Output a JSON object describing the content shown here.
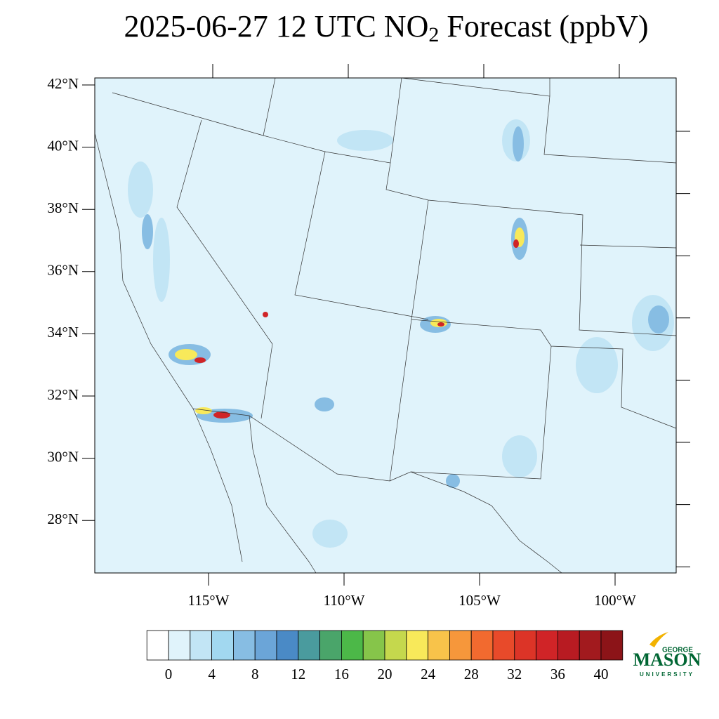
{
  "title": {
    "main": "2025-06-27 12 UTC NO",
    "subscript": "2",
    "rest": " Forecast (ppbV)"
  },
  "map": {
    "lat_labels": [
      {
        "value": 42,
        "label": "42°N"
      },
      {
        "value": 40,
        "label": "40°N"
      },
      {
        "value": 38,
        "label": "38°N"
      },
      {
        "value": 36,
        "label": "36°N"
      },
      {
        "value": 34,
        "label": "34°N"
      },
      {
        "value": 32,
        "label": "32°N"
      },
      {
        "value": 30,
        "label": "30°N"
      },
      {
        "value": 28,
        "label": "28°N"
      }
    ],
    "lon_labels": [
      {
        "value": -115,
        "label": "115°W"
      },
      {
        "value": -110,
        "label": "110°W"
      },
      {
        "value": -105,
        "label": "105°W"
      },
      {
        "value": -100,
        "label": "100°W"
      }
    ]
  },
  "colorbar": {
    "levels": [
      0,
      2,
      4,
      6,
      8,
      10,
      12,
      14,
      16,
      18,
      20,
      22,
      24,
      26,
      28,
      30,
      32,
      34,
      36,
      38,
      40
    ],
    "ticks": [
      0,
      4,
      8,
      12,
      16,
      20,
      24,
      28,
      32,
      36,
      40
    ],
    "colors": [
      "#ffffff",
      "#e0f3fb",
      "#c2e5f5",
      "#a2d8f0",
      "#87bde3",
      "#6ba5d8",
      "#4a8ac6",
      "#4a9b9e",
      "#4aa56a",
      "#4cb848",
      "#86c54a",
      "#c5d84d",
      "#f8e95a",
      "#f8c34a",
      "#f6973b",
      "#f26a2f",
      "#e84a2a",
      "#dc3427",
      "#d02427",
      "#b81b22",
      "#a21a1e",
      "#8c1418"
    ]
  },
  "logo": {
    "top": "GEORGE",
    "main": "MASON",
    "bottom": "UNIVERSITY"
  }
}
